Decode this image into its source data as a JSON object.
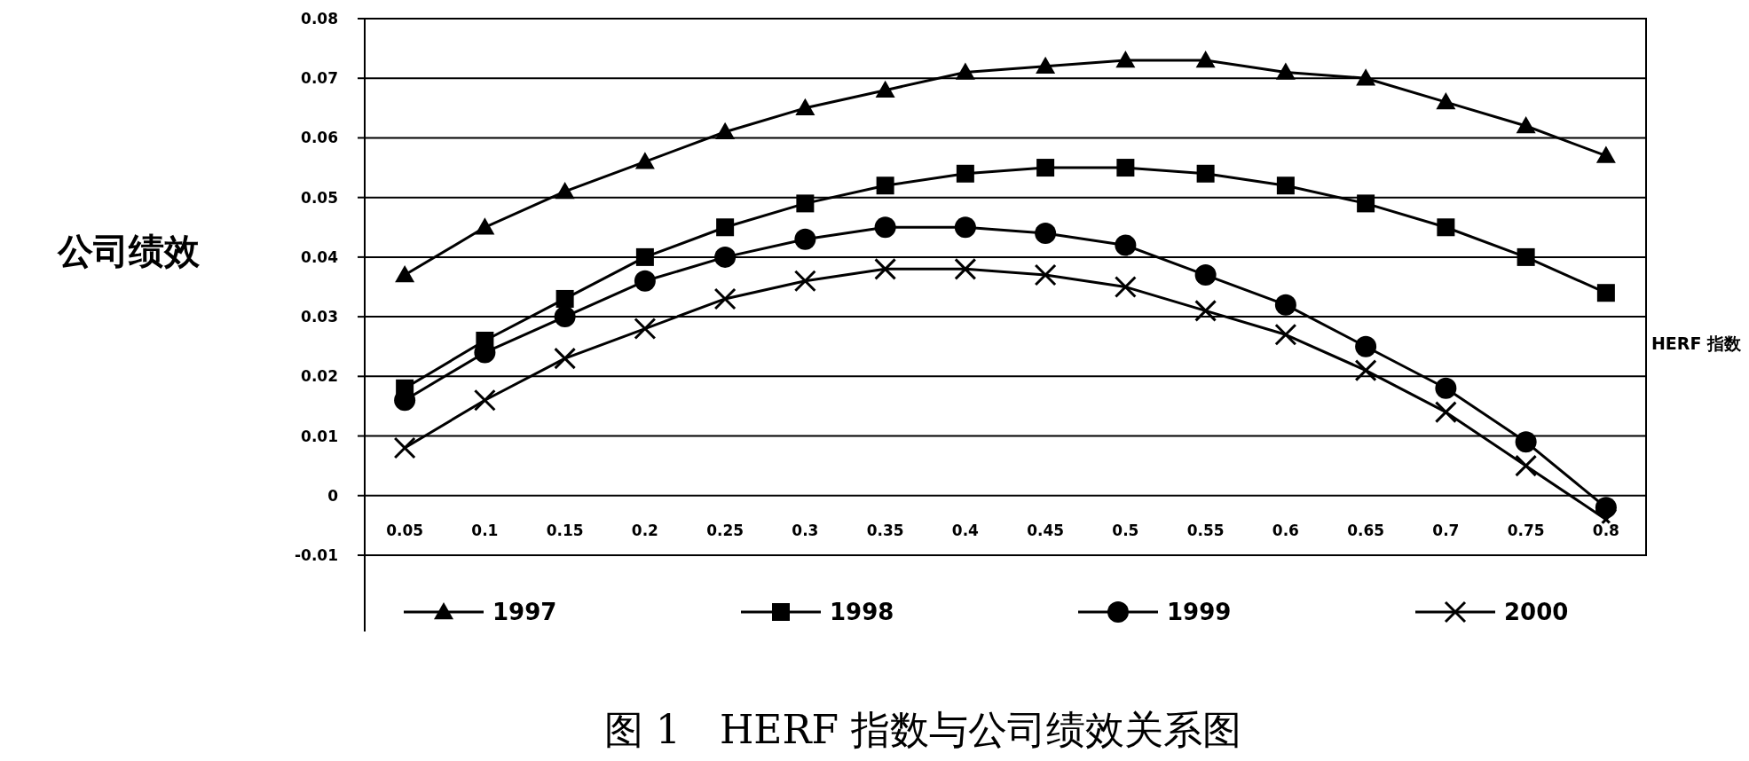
{
  "chart_data": {
    "type": "line",
    "title": "图 1　HERF 指数与公司绩效关系图",
    "xlabel": "HERF 指数",
    "ylabel": "公司绩效",
    "categories": [
      "0.05",
      "0.1",
      "0.15",
      "0.2",
      "0.25",
      "0.3",
      "0.35",
      "0.4",
      "0.45",
      "0.5",
      "0.55",
      "0.6",
      "0.65",
      "0.7",
      "0.75",
      "0.8"
    ],
    "series": [
      {
        "name": "1997",
        "color": "#000000",
        "marker": "triangle",
        "values": [
          0.037,
          0.045,
          0.051,
          0.056,
          0.061,
          0.065,
          0.068,
          0.071,
          0.072,
          0.073,
          0.073,
          0.071,
          0.07,
          0.066,
          0.062,
          0.057
        ]
      },
      {
        "name": "1998",
        "color": "#000000",
        "marker": "square",
        "values": [
          0.018,
          0.026,
          0.033,
          0.04,
          0.045,
          0.049,
          0.052,
          0.054,
          0.055,
          0.055,
          0.054,
          0.052,
          0.049,
          0.045,
          0.04,
          0.034
        ]
      },
      {
        "name": "1999",
        "color": "#000000",
        "marker": "circle",
        "values": [
          0.016,
          0.024,
          0.03,
          0.036,
          0.04,
          0.043,
          0.045,
          0.045,
          0.044,
          0.042,
          0.037,
          0.032,
          0.025,
          0.018,
          0.009,
          -0.002
        ]
      },
      {
        "name": "2000",
        "color": "#000000",
        "marker": "cross",
        "values": [
          0.008,
          0.016,
          0.023,
          0.028,
          0.033,
          0.036,
          0.038,
          0.038,
          0.037,
          0.035,
          0.031,
          0.027,
          0.021,
          0.014,
          0.005,
          -0.004
        ]
      }
    ],
    "ylim": [
      -0.01,
      0.08
    ],
    "yticks": [
      {
        "value": -0.01,
        "label": "-0.01"
      },
      0,
      0.01,
      0.02,
      0.03,
      0.04,
      0.05,
      0.06,
      0.07,
      0.08
    ],
    "grid": "y",
    "legend": "bottom",
    "line_style": "solid"
  }
}
